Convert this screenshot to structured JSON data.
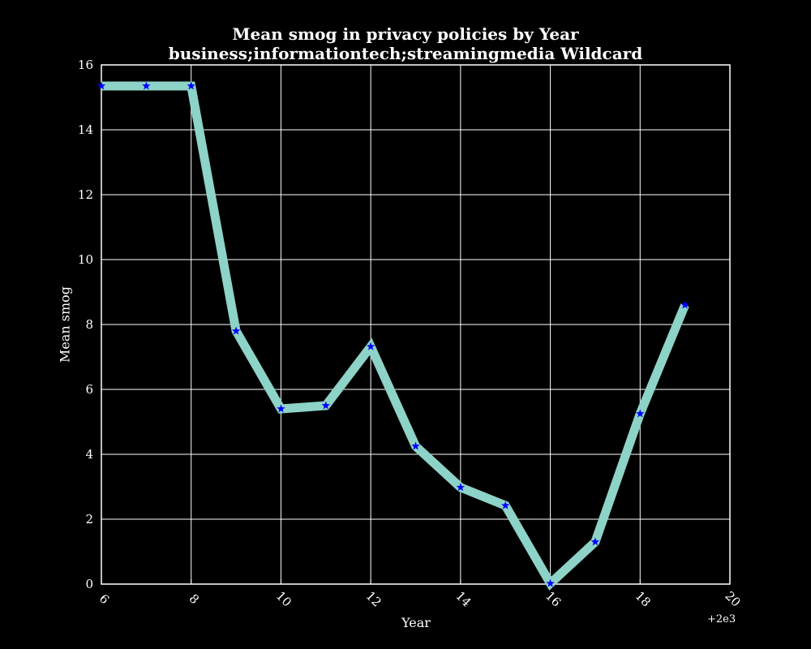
{
  "chart_data": {
    "type": "line",
    "title": "Mean smog in privacy policies by Year",
    "subtitle": "business;informationtech;streamingmedia Wildcard",
    "xlabel": "Year",
    "ylabel": "Mean smog",
    "x_offset_label": "+2e3",
    "xlim": [
      6,
      20
    ],
    "ylim": [
      0,
      16
    ],
    "x_ticks": [
      6,
      8,
      10,
      12,
      14,
      16,
      18,
      20
    ],
    "y_ticks": [
      0,
      2,
      4,
      6,
      8,
      10,
      12,
      14,
      16
    ],
    "grid": true,
    "line_color": "#8dd3c7",
    "marker_color": "#0000ff",
    "marker": "star",
    "background": "#000000",
    "series": [
      {
        "x": [
          6,
          7,
          8,
          9,
          10,
          11,
          12,
          13,
          14,
          15,
          16,
          17,
          18,
          19
        ],
        "y": [
          15.35,
          15.35,
          15.35,
          7.8,
          5.4,
          5.5,
          7.32,
          4.25,
          2.98,
          2.42,
          0.02,
          1.3,
          5.25,
          8.6
        ]
      }
    ]
  }
}
